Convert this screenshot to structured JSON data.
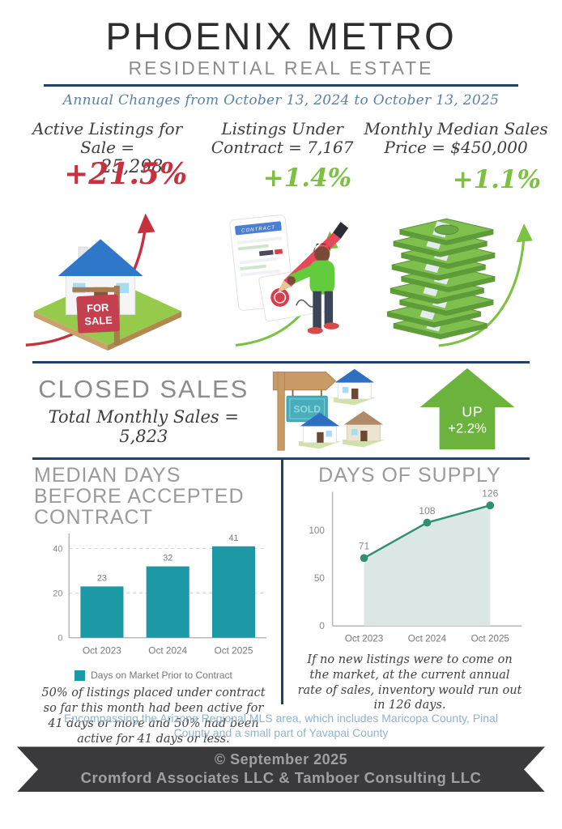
{
  "header": {
    "title": "PHOENIX METRO",
    "subtitle": "RESIDENTIAL REAL ESTATE",
    "period": "Annual Changes from October 13, 2024 to October 13, 2025"
  },
  "stats": [
    {
      "label": "Active Listings for Sale =",
      "value": "25,298",
      "change": "+21.5%",
      "trend": "up",
      "icon": "house-for-sale"
    },
    {
      "label": "Listings Under Contract =",
      "value": "7,167",
      "change": "+1.4%",
      "trend": "up",
      "icon": "contract-signing"
    },
    {
      "label": "Monthly Median Sales Price =",
      "value": "$450,000",
      "change": "+1.1%",
      "trend": "up",
      "icon": "money-stack"
    }
  ],
  "illustrations": {
    "for_sale_line1": "FOR",
    "for_sale_line2": "SALE",
    "contract_header": "CONTRACT",
    "sold_sign": "SOLD"
  },
  "closed_sales": {
    "title": "CLOSED SALES",
    "label": "Total Monthly Sales =",
    "value": "5,823",
    "badge_direction": "UP",
    "badge_change": "+2.2%"
  },
  "chart_data": [
    {
      "type": "bar",
      "title": "MEDIAN DAYS BEFORE ACCEPTED CONTRACT",
      "categories": [
        "Oct 2023",
        "Oct 2024",
        "Oct 2025"
      ],
      "values": [
        23,
        32,
        41
      ],
      "ylim": [
        0,
        45
      ],
      "yticks": [
        0,
        20,
        40
      ],
      "grid": true,
      "legend": [
        "Days on Market Prior to Contract"
      ],
      "legend_position": "bottom",
      "bar_color": "#1d99a6"
    },
    {
      "type": "area",
      "title": "DAYS OF SUPPLY",
      "categories": [
        "Oct 2023",
        "Oct 2024",
        "Oct 2025"
      ],
      "values": [
        71,
        108,
        126
      ],
      "ylim": [
        0,
        135
      ],
      "yticks": [
        0,
        50,
        100
      ],
      "grid": false,
      "line_color": "#2e8f72",
      "fill_color": "#dbe7e4"
    }
  ],
  "notes": {
    "median_days": "50% of listings placed under contract so far this month had been active for 41 days or more and 50% had been active for 41 days or less.",
    "days_of_supply": "If no new listings were to come on the market, at the current annual rate of sales, inventory would run out in 126 days."
  },
  "footer": {
    "coverage": "Encompassing the Arizona Regional MLS area, which includes Maricopa County, Pinal County and a small part of Yavapai County",
    "copyright": "© September 2025",
    "company": "Cromford Associates LLC & Tamboer Consulting LLC"
  },
  "colors": {
    "divider_navy": "#1e4269",
    "period_steel_blue": "#5b80a5",
    "increase_red": "#c5313f",
    "increase_green": "#7cc142",
    "bar_teal": "#1d99a6",
    "line_green": "#2e8f72",
    "area_fill": "#dbe7e4",
    "up_arrow_green": "#6cb33e",
    "ribbon_bg": "#3a3a3c",
    "ribbon_text": "#a0a0a0"
  }
}
